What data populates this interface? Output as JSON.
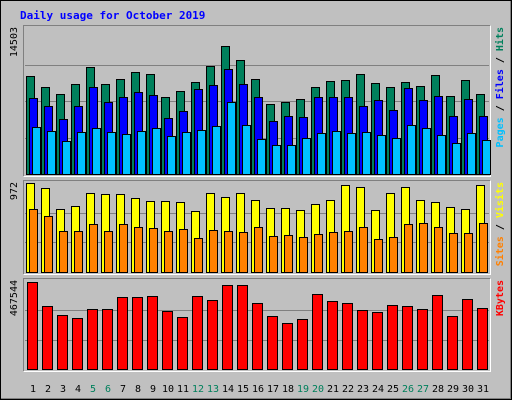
{
  "chart_data": {
    "type": "bar",
    "title": "Daily usage for October 2019",
    "categories": [
      "1",
      "2",
      "3",
      "4",
      "5",
      "6",
      "7",
      "8",
      "9",
      "10",
      "11",
      "12",
      "13",
      "14",
      "15",
      "16",
      "17",
      "18",
      "19",
      "20",
      "21",
      "22",
      "23",
      "24",
      "25",
      "26",
      "27",
      "28",
      "29",
      "30",
      "31"
    ],
    "weekend_days": [
      "5",
      "6",
      "12",
      "13",
      "19",
      "20",
      "26",
      "27"
    ],
    "panels": [
      {
        "id": "hits",
        "scale_label": "14503",
        "ylim": [
          0,
          14503
        ],
        "grid": true,
        "legend": [
          "Pages",
          "Files",
          "Hits"
        ],
        "legend_separator": " / ",
        "series": [
          {
            "name": "Hits",
            "color": "#00805c",
            "values": [
              9700,
              8650,
              7900,
              8950,
              10600,
              8950,
              9450,
              10150,
              9950,
              7600,
              8200,
              9150,
              10700,
              12700,
              11300,
              9400,
              6950,
              7200,
              7450,
              8650,
              9200,
              9300,
              9950,
              9050,
              8650,
              9150,
              8750,
              9800,
              7750,
              9350,
              7950
            ]
          },
          {
            "name": "Files",
            "color": "#0000ff",
            "values": [
              7550,
              6800,
              5500,
              6800,
              8650,
              7150,
              7600,
              8150,
              7850,
              5600,
              6250,
              8450,
              8850,
              10450,
              8950,
              7650,
              5300,
              5750,
              5650,
              7650,
              7650,
              7650,
              6750,
              7350,
              6400,
              8500,
              7400,
              7750,
              5800,
              7450,
              5800
            ]
          },
          {
            "name": "Pages",
            "color": "#00c0ff",
            "values": [
              4700,
              4300,
              3250,
              4150,
              4550,
              4150,
              4000,
              4300,
              4600,
              3750,
              4150,
              4400,
              4800,
              7200,
              4900,
              3500,
              2850,
              2900,
              3600,
              4050,
              4250,
              4050,
              4150,
              3850,
              3550,
              4850,
              4600,
              3850,
              3100,
              4050,
              3400
            ]
          }
        ]
      },
      {
        "id": "visits",
        "scale_label": "972",
        "ylim": [
          0,
          972
        ],
        "grid": true,
        "legend": [
          "Sites",
          "Visits"
        ],
        "legend_separator": " / ",
        "series": [
          {
            "name": "Visits",
            "color": "#ffff00",
            "values": [
              970,
              915,
              690,
              725,
              865,
              855,
              850,
              810,
              770,
              780,
              760,
              670,
              860,
              820,
              860,
              790,
              695,
              695,
              675,
              745,
              790,
              945,
              925,
              680,
              865,
              925,
              790,
              765,
              705,
              690,
              955
            ]
          },
          {
            "name": "Sites",
            "color": "#ff8000",
            "values": [
              690,
              615,
              450,
              445,
              525,
              450,
              525,
              490,
              480,
              445,
              470,
              375,
              455,
              445,
              435,
              490,
              395,
              400,
              385,
              410,
              435,
              445,
              495,
              365,
              380,
              525,
              540,
              490,
              425,
              430,
              540
            ]
          }
        ]
      },
      {
        "id": "kbytes",
        "scale_label": "467544",
        "ylim": [
          0,
          467544
        ],
        "grid": true,
        "legend": [
          "KBytes"
        ],
        "legend_separator": "",
        "series": [
          {
            "name": "KBytes",
            "color": "#ff0000",
            "values": [
              462000,
              336000,
              287000,
              272000,
              318000,
              318000,
              382000,
              382000,
              387000,
              308000,
              274000,
              387000,
              365000,
              447000,
              447000,
              353000,
              280000,
              247000,
              264000,
              397000,
              359000,
              353000,
              313000,
              303000,
              340000,
              335000,
              318000,
              392000,
              280000,
              374000,
              325000
            ]
          }
        ]
      }
    ],
    "colors": {
      "background": "#c0c0c0",
      "title": "#0000ff",
      "day_label_weekday": "#000000",
      "day_label_weekend": "#00805c",
      "grid": "#808080",
      "bar_border": "#000000"
    }
  }
}
